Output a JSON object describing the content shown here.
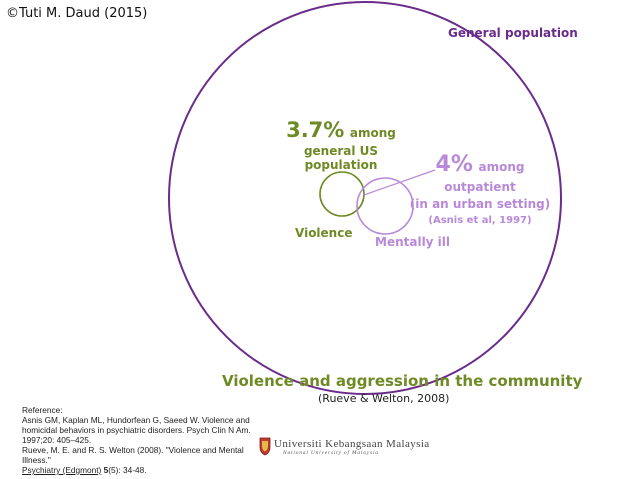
{
  "header": {
    "copyright": "©Tuti M. Daud (2015)"
  },
  "diagram": {
    "general_population_label": "General population",
    "violence_label": "Violence",
    "mentally_ill_label": "Mentally ill",
    "stat_general": {
      "value": "3.7%",
      "suffix": "among",
      "line2": "general US population"
    },
    "stat_outpatient": {
      "value": "4%",
      "suffix": "among",
      "line2": "outpatient",
      "line3": "(in an urban setting)",
      "citation": "(Asnis et al, 1997)"
    },
    "colors": {
      "population_circle": "#6a2c8a",
      "violence": "#6e8a25",
      "mentally_ill": "#b889d9"
    }
  },
  "title": "Violence and aggression in the community",
  "subtitle": "(Rueve & Welton, 2008)",
  "references": {
    "heading": "Reference:",
    "ref1_line1": "Asnis GM, Kaplan ML, Hundorfean G, Saeed W. Violence and",
    "ref1_line2": "homicidal behaviors in psychiatric disorders. Psych Clin N Am.",
    "ref1_line3": "1997;20: 405–425.",
    "ref2_line1": "Rueve, M. E. and R. S. Welton (2008). \"Violence and Mental Illness.\"",
    "ref2_journal": "Psychiatry (Edgmont)",
    "ref2_volume": "5",
    "ref2_pages": "(5): 34-48."
  },
  "logo": {
    "name": "Universiti Kebangsaan Malaysia",
    "subtitle": "National University of Malaysia"
  }
}
